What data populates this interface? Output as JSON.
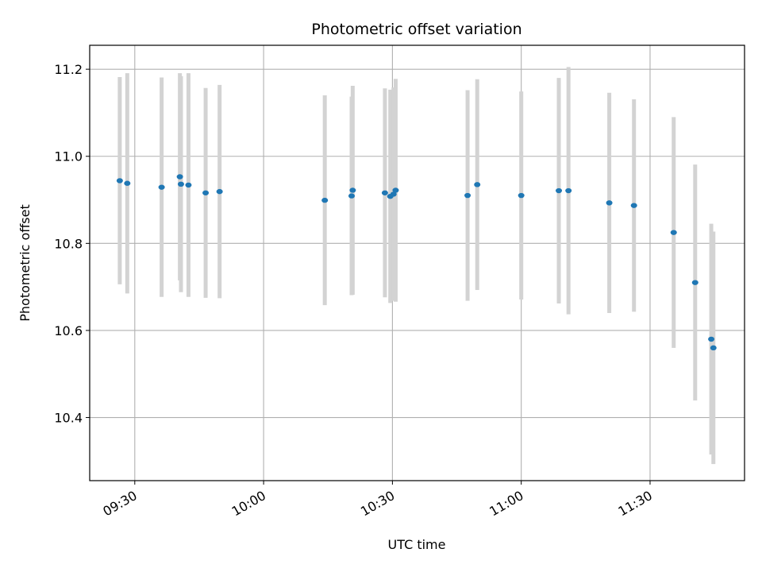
{
  "chart_data": {
    "type": "scatter",
    "title": "Photometric offset variation",
    "xlabel": "UTC time",
    "ylabel": "Photometric offset",
    "x_is_time": true,
    "xlim": [
      "09:19:30",
      "11:52:00"
    ],
    "ylim": [
      10.255,
      11.255
    ],
    "x_ticks": [
      "09:30",
      "10:00",
      "10:30",
      "11:00",
      "11:30"
    ],
    "y_ticks": [
      "10.4",
      "10.6",
      "10.8",
      "11.0",
      "11.2"
    ],
    "grid": true,
    "colors": {
      "points": "#1f77b4",
      "errorbars": "#d3d3d3",
      "grid": "#b0b0b0"
    },
    "series": [
      {
        "points": [
          {
            "time": "09:26:30",
            "y": 10.944,
            "err": 0.238
          },
          {
            "time": "09:28:15",
            "y": 10.938,
            "err": 0.253
          },
          {
            "time": "09:36:15",
            "y": 10.929,
            "err": 0.252
          },
          {
            "time": "09:40:30",
            "y": 10.953,
            "err": 0.238
          },
          {
            "time": "09:40:45",
            "y": 10.936,
            "err": 0.248
          },
          {
            "time": "09:42:30",
            "y": 10.934,
            "err": 0.257
          },
          {
            "time": "09:46:30",
            "y": 10.916,
            "err": 0.241
          },
          {
            "time": "09:49:45",
            "y": 10.919,
            "err": 0.245
          },
          {
            "time": "10:14:15",
            "y": 10.899,
            "err": 0.241
          },
          {
            "time": "10:20:30",
            "y": 10.909,
            "err": 0.228
          },
          {
            "time": "10:20:45",
            "y": 10.922,
            "err": 0.24
          },
          {
            "time": "10:28:15",
            "y": 10.916,
            "err": 0.24
          },
          {
            "time": "10:29:30",
            "y": 10.908,
            "err": 0.245
          },
          {
            "time": "10:30:15",
            "y": 10.913,
            "err": 0.245
          },
          {
            "time": "10:30:45",
            "y": 10.922,
            "err": 0.256
          },
          {
            "time": "10:47:30",
            "y": 10.91,
            "err": 0.242
          },
          {
            "time": "10:49:45",
            "y": 10.935,
            "err": 0.242
          },
          {
            "time": "11:00:00",
            "y": 10.91,
            "err": 0.239
          },
          {
            "time": "11:08:45",
            "y": 10.921,
            "err": 0.259
          },
          {
            "time": "11:11:00",
            "y": 10.921,
            "err": 0.284
          },
          {
            "time": "11:20:30",
            "y": 10.893,
            "err": 0.253
          },
          {
            "time": "11:26:15",
            "y": 10.887,
            "err": 0.244
          },
          {
            "time": "11:35:30",
            "y": 10.825,
            "err": 0.265
          },
          {
            "time": "11:40:30",
            "y": 10.71,
            "err": 0.271
          },
          {
            "time": "11:44:15",
            "y": 10.58,
            "err": 0.265
          },
          {
            "time": "11:44:45",
            "y": 10.56,
            "err": 0.267
          }
        ]
      }
    ]
  }
}
